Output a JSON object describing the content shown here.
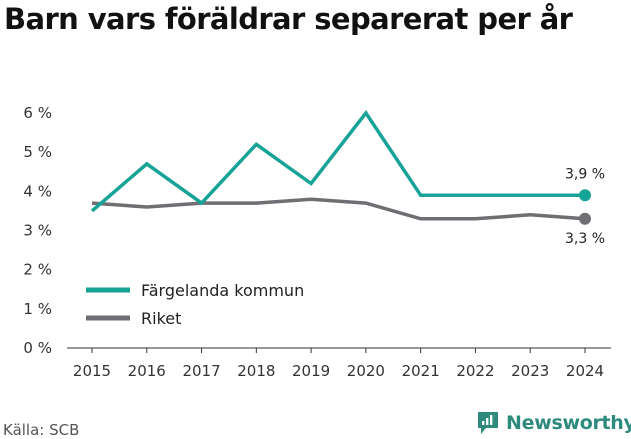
{
  "title": "Barn vars föräldrar separerat per år",
  "source": "Källa: SCB",
  "brand": {
    "name": "Newsworthy",
    "logo_icon": "newsworthy-logo-icon",
    "color": "#2f8a7e"
  },
  "chart_data": {
    "type": "line",
    "x": [
      2015,
      2016,
      2017,
      2018,
      2019,
      2020,
      2021,
      2022,
      2023,
      2024
    ],
    "y_ticks": [
      "0 %",
      "1 %",
      "2 %",
      "3 %",
      "4 %",
      "5 %",
      "6 %"
    ],
    "ylim": [
      0,
      6
    ],
    "grid": false,
    "legend_position": "bottom-left",
    "series": [
      {
        "name": "Färgelanda kommun",
        "color": "#17a398",
        "values": [
          3.5,
          4.7,
          3.7,
          5.2,
          4.2,
          6.0,
          3.9,
          3.9,
          3.9,
          3.9
        ],
        "end_label": "3,9 %"
      },
      {
        "name": "Riket",
        "color": "#6e6e73",
        "values": [
          3.7,
          3.6,
          3.7,
          3.7,
          3.8,
          3.7,
          3.3,
          3.3,
          3.4,
          3.3
        ],
        "end_label": "3,3 %"
      }
    ]
  }
}
